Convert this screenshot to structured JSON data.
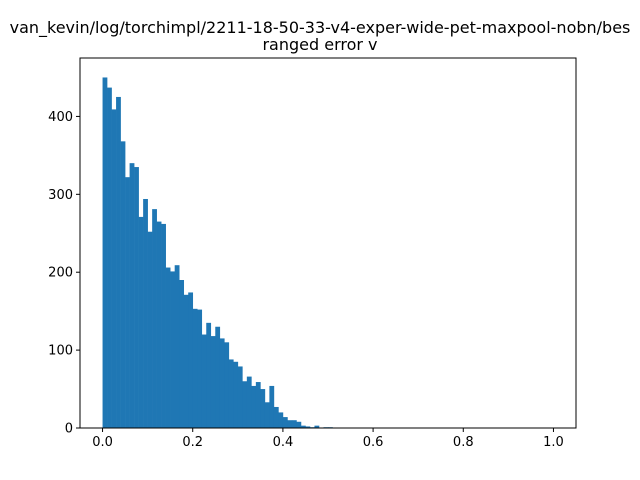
{
  "chart_data": {
    "type": "bar",
    "title_lines": [
      "van_kevin/log/torchimpl/2211-18-50-33-v4-exper-wide-pet-maxpool-nobn/bes",
      "ranged error v"
    ],
    "xlabel": "",
    "ylabel": "",
    "xlim": [
      -0.05,
      1.05
    ],
    "ylim": [
      0,
      475
    ],
    "xticks": [
      0.0,
      0.2,
      0.4,
      0.6,
      0.8,
      1.0
    ],
    "xtick_labels": [
      "0.0",
      "0.2",
      "0.4",
      "0.6",
      "0.8",
      "1.0"
    ],
    "yticks": [
      0,
      100,
      200,
      300,
      400
    ],
    "ytick_labels": [
      "0",
      "100",
      "200",
      "300",
      "400"
    ],
    "grid": false,
    "bar_color": "#1f77b4",
    "bin_width": 0.01,
    "bin_start": 0.0,
    "values": [
      450,
      437,
      409,
      425,
      368,
      322,
      340,
      335,
      271,
      294,
      252,
      281,
      265,
      262,
      206,
      201,
      209,
      190,
      171,
      174,
      153,
      152,
      120,
      135,
      118,
      130,
      115,
      110,
      88,
      85,
      79,
      60,
      66,
      54,
      59,
      50,
      33,
      54,
      27,
      20,
      14,
      10,
      10,
      8,
      3,
      2,
      1,
      3,
      0,
      1,
      1,
      0,
      0,
      0,
      0,
      0,
      0,
      0,
      0,
      0,
      0,
      0,
      0,
      0,
      0,
      0,
      0,
      0,
      0,
      0,
      0,
      0,
      0,
      0,
      0,
      0,
      0,
      0,
      0,
      0,
      0,
      0,
      0,
      0,
      0,
      0,
      0,
      0,
      0,
      0,
      0,
      0,
      0,
      0,
      0,
      0,
      0,
      0,
      0,
      0
    ]
  }
}
